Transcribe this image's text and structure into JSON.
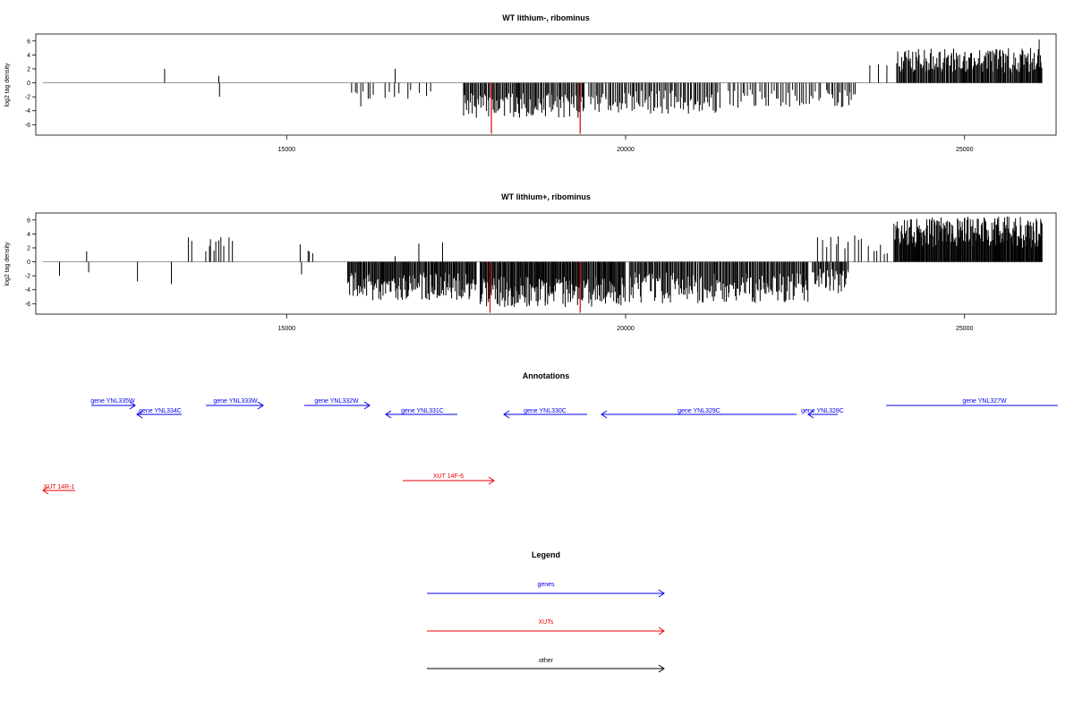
{
  "chart_data": [
    {
      "type": "bar",
      "title": "WT lithium-, ribominus",
      "ylabel": "log2 tag density",
      "xlim": [
        11300,
        26350
      ],
      "ylim": [
        -7.5,
        7
      ],
      "xticks": [
        15000,
        20000,
        25000
      ],
      "yticks": [
        -6,
        -4,
        -2,
        0,
        2,
        4,
        6
      ],
      "baseline": {
        "from": 11400,
        "to": 26150
      },
      "bars": [
        [
          13200,
          2.0
        ],
        [
          14000,
          1.0
        ],
        [
          14010,
          -2.0
        ],
        [
          16600,
          2.0
        ],
        [
          24000,
          2.8
        ],
        [
          24200,
          3.5
        ],
        [
          24500,
          3.2
        ],
        [
          25000,
          3.6
        ],
        [
          25500,
          3.4
        ],
        [
          26100,
          6.2
        ]
      ],
      "bar_clusters": [
        {
          "range": [
            15950,
            16300
          ],
          "n": 8,
          "min": -3.5,
          "max": -1.2
        },
        {
          "range": [
            16400,
            16900
          ],
          "n": 6,
          "min": -3.0,
          "max": -1.0
        },
        {
          "range": [
            16950,
            17200
          ],
          "n": 3,
          "min": -2.0,
          "max": -0.8
        },
        {
          "range": [
            17600,
            19400
          ],
          "n": 110,
          "min": -5.0,
          "max": -1.5
        },
        {
          "range": [
            19450,
            21400
          ],
          "n": 90,
          "min": -4.5,
          "max": -1.0
        },
        {
          "range": [
            21500,
            22900
          ],
          "n": 40,
          "min": -3.6,
          "max": -1.0
        },
        {
          "range": [
            22950,
            23400
          ],
          "n": 18,
          "min": -3.5,
          "max": -1.0
        },
        {
          "range": [
            23600,
            23900
          ],
          "n": 3,
          "min": 2.0,
          "max": 3.0
        },
        {
          "range": [
            24000,
            26150
          ],
          "n": 170,
          "min": 1.5,
          "max": 5.0
        }
      ],
      "highlight_bars": [
        [
          18020,
          -7.3
        ],
        [
          19330,
          -7.3
        ]
      ],
      "highlight_color": "#dd0000"
    },
    {
      "type": "bar",
      "title": "WT lithium+, ribominus",
      "ylabel": "log2 tag density",
      "xlim": [
        11300,
        26350
      ],
      "ylim": [
        -7.5,
        7
      ],
      "xticks": [
        15000,
        20000,
        25000
      ],
      "yticks": [
        -6,
        -4,
        -2,
        0,
        2,
        4,
        6
      ],
      "baseline": {
        "from": 11400,
        "to": 26150
      },
      "bars": [
        [
          11650,
          -2.0
        ],
        [
          12050,
          1.5
        ],
        [
          12080,
          -1.5
        ],
        [
          12800,
          -2.8
        ],
        [
          13300,
          -3.2
        ],
        [
          13550,
          3.5
        ],
        [
          13600,
          3.0
        ],
        [
          14150,
          3.5
        ],
        [
          14200,
          3.0
        ],
        [
          15200,
          2.5
        ],
        [
          15220,
          -1.8
        ],
        [
          16600,
          0.8
        ],
        [
          16950,
          2.6
        ],
        [
          17300,
          2.8
        ]
      ],
      "bar_clusters": [
        {
          "range": [
            13800,
            14100
          ],
          "n": 8,
          "min": 1.5,
          "max": 3.6
        },
        {
          "range": [
            15300,
            15400
          ],
          "n": 3,
          "min": 1.0,
          "max": 2.0
        },
        {
          "range": [
            15900,
            17800
          ],
          "n": 150,
          "min": -5.5,
          "max": -1.5
        },
        {
          "range": [
            17850,
            20000
          ],
          "n": 180,
          "min": -6.5,
          "max": -2.0
        },
        {
          "range": [
            20050,
            22700
          ],
          "n": 180,
          "min": -6.0,
          "max": -1.5
        },
        {
          "range": [
            22750,
            23300
          ],
          "n": 35,
          "min": -4.5,
          "max": -1.0
        },
        {
          "range": [
            22800,
            23600
          ],
          "n": 12,
          "min": 1.5,
          "max": 4.0
        },
        {
          "range": [
            23650,
            23900
          ],
          "n": 5,
          "min": 1.0,
          "max": 2.5
        },
        {
          "range": [
            23950,
            26150
          ],
          "n": 220,
          "min": 2.0,
          "max": 6.5
        }
      ],
      "highlight_bars": [
        [
          18000,
          -7.3
        ],
        [
          19330,
          -7.3
        ]
      ],
      "highlight_color": "#dd0000"
    }
  ],
  "annotations": {
    "title": "Annotations",
    "genes": [
      {
        "label": "gene YNL335W",
        "dir": "right"
      },
      {
        "label": "gene YNL334C",
        "dir": "left"
      },
      {
        "label": "gene YNL333W",
        "dir": "right"
      },
      {
        "label": "gene YNL332W",
        "dir": "right"
      },
      {
        "label": "gene YNL331C",
        "dir": "left"
      },
      {
        "label": "gene YNL330C",
        "dir": "left"
      },
      {
        "label": "gene YNL329C",
        "dir": "left"
      },
      {
        "label": "gene YNL328C",
        "dir": "left"
      },
      {
        "label": "gene YNL327W",
        "dir": "right"
      }
    ],
    "xuts": [
      {
        "label": "XUT 14R-1",
        "dir": "left"
      },
      {
        "label": "XUT 14F-6",
        "dir": "right"
      }
    ],
    "gene_color": "#0000ee",
    "xut_color": "#ee0000"
  },
  "legend": {
    "title": "Legend",
    "items": [
      {
        "label": "genes",
        "color": "#0000ee"
      },
      {
        "label": "XUTs",
        "color": "#ee0000"
      },
      {
        "label": "other",
        "color": "#000000"
      }
    ]
  }
}
